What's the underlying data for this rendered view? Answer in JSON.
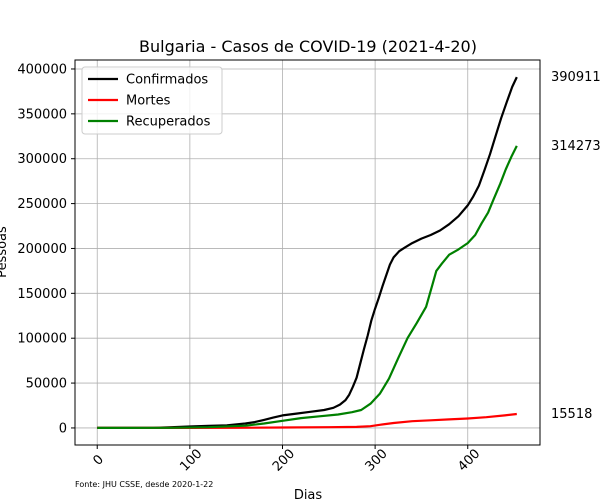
{
  "chart_data": {
    "type": "line",
    "title": "Bulgaria - Casos de COVID-19 (2021-4-20)",
    "xlabel": "Dias",
    "ylabel": "Pessoas",
    "xlim": [
      -24,
      478
    ],
    "ylim": [
      -19000,
      410000
    ],
    "x_ticks": [
      0,
      100,
      200,
      300,
      400
    ],
    "y_ticks": [
      0,
      50000,
      100000,
      150000,
      200000,
      250000,
      300000,
      350000,
      400000
    ],
    "grid": true,
    "legend_position": "top-left",
    "source_note": "Fonte: JHU CSSE, desde 2020-1-22",
    "series": [
      {
        "name": "Confirmados",
        "color": "#000000",
        "end_label": "390911",
        "points": [
          [
            0,
            0
          ],
          [
            40,
            0
          ],
          [
            60,
            200
          ],
          [
            80,
            800
          ],
          [
            100,
            1600
          ],
          [
            120,
            2300
          ],
          [
            140,
            3000
          ],
          [
            160,
            5000
          ],
          [
            170,
            6500
          ],
          [
            180,
            9000
          ],
          [
            190,
            11500
          ],
          [
            200,
            14000
          ],
          [
            215,
            16000
          ],
          [
            230,
            18000
          ],
          [
            245,
            20000
          ],
          [
            255,
            22500
          ],
          [
            262,
            26000
          ],
          [
            268,
            31000
          ],
          [
            272,
            37000
          ],
          [
            276,
            46000
          ],
          [
            280,
            56000
          ],
          [
            284,
            72000
          ],
          [
            288,
            88000
          ],
          [
            292,
            103000
          ],
          [
            296,
            120000
          ],
          [
            300,
            133000
          ],
          [
            304,
            145000
          ],
          [
            308,
            158000
          ],
          [
            312,
            170000
          ],
          [
            316,
            182000
          ],
          [
            320,
            190000
          ],
          [
            326,
            197000
          ],
          [
            332,
            201000
          ],
          [
            340,
            206000
          ],
          [
            350,
            211000
          ],
          [
            360,
            215000
          ],
          [
            370,
            220000
          ],
          [
            380,
            227000
          ],
          [
            390,
            236000
          ],
          [
            400,
            248000
          ],
          [
            406,
            258000
          ],
          [
            412,
            270000
          ],
          [
            418,
            287000
          ],
          [
            424,
            305000
          ],
          [
            430,
            325000
          ],
          [
            436,
            345000
          ],
          [
            442,
            363000
          ],
          [
            448,
            380000
          ],
          [
            453,
            390911
          ]
        ]
      },
      {
        "name": "Mortes",
        "color": "#ff0000",
        "end_label": "15518",
        "points": [
          [
            0,
            0
          ],
          [
            100,
            60
          ],
          [
            150,
            200
          ],
          [
            200,
            500
          ],
          [
            250,
            800
          ],
          [
            280,
            1200
          ],
          [
            295,
            2000
          ],
          [
            305,
            3500
          ],
          [
            320,
            5500
          ],
          [
            340,
            7500
          ],
          [
            360,
            8500
          ],
          [
            380,
            9500
          ],
          [
            400,
            10500
          ],
          [
            420,
            12000
          ],
          [
            440,
            14000
          ],
          [
            453,
            15518
          ]
        ]
      },
      {
        "name": "Recuperados",
        "color": "#008000",
        "end_label": "314273",
        "points": [
          [
            0,
            0
          ],
          [
            80,
            200
          ],
          [
            120,
            800
          ],
          [
            160,
            2500
          ],
          [
            180,
            5000
          ],
          [
            200,
            8000
          ],
          [
            220,
            11000
          ],
          [
            240,
            13000
          ],
          [
            260,
            15000
          ],
          [
            275,
            17500
          ],
          [
            285,
            20000
          ],
          [
            295,
            27000
          ],
          [
            305,
            38000
          ],
          [
            315,
            55000
          ],
          [
            325,
            78000
          ],
          [
            335,
            100000
          ],
          [
            345,
            117000
          ],
          [
            355,
            135000
          ],
          [
            362,
            160000
          ],
          [
            366,
            175000
          ],
          [
            372,
            183000
          ],
          [
            380,
            193000
          ],
          [
            390,
            199000
          ],
          [
            400,
            206000
          ],
          [
            408,
            215000
          ],
          [
            415,
            228000
          ],
          [
            422,
            240000
          ],
          [
            428,
            255000
          ],
          [
            435,
            272000
          ],
          [
            441,
            288000
          ],
          [
            447,
            302000
          ],
          [
            453,
            314273
          ]
        ]
      }
    ]
  }
}
